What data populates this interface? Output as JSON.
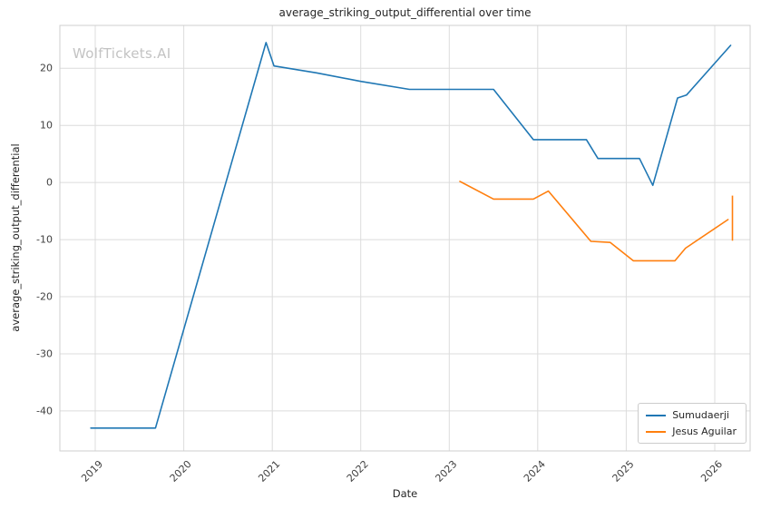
{
  "watermark": "WolfTickets.AI",
  "chart_data": {
    "type": "line",
    "title": "average_striking_output_differential over time",
    "xlabel": "Date",
    "ylabel": "average_striking_output_differential",
    "xlim": [
      2018.6,
      2026.4
    ],
    "ylim": [
      -47,
      27.5
    ],
    "xticks": [
      2019,
      2020,
      2021,
      2022,
      2023,
      2024,
      2025,
      2026
    ],
    "xtick_labels": [
      "2019",
      "2020",
      "2021",
      "2022",
      "2023",
      "2024",
      "2025",
      "2026"
    ],
    "yticks": [
      -40,
      -30,
      -20,
      -10,
      0,
      10,
      20
    ],
    "grid": true,
    "legend_position": "lower right",
    "series": [
      {
        "name": "Sumudaerji",
        "color": "#1f77b4",
        "points": [
          [
            2018.95,
            -43.0
          ],
          [
            2019.68,
            -43.0
          ],
          [
            2020.93,
            24.5
          ],
          [
            2021.02,
            20.4
          ],
          [
            2021.5,
            19.2
          ],
          [
            2022.0,
            17.7
          ],
          [
            2022.55,
            16.3
          ],
          [
            2023.0,
            16.3
          ],
          [
            2023.5,
            16.3
          ],
          [
            2023.95,
            7.5
          ],
          [
            2024.55,
            7.5
          ],
          [
            2024.68,
            4.2
          ],
          [
            2025.15,
            4.2
          ],
          [
            2025.3,
            -0.5
          ],
          [
            2025.58,
            14.8
          ],
          [
            2025.68,
            15.3
          ],
          [
            2026.18,
            24.0
          ]
        ]
      },
      {
        "name": "Jesus Aguilar",
        "color": "#ff7f0e",
        "points": [
          [
            2023.12,
            0.2
          ],
          [
            2023.5,
            -2.9
          ],
          [
            2023.95,
            -2.9
          ],
          [
            2024.12,
            -1.5
          ],
          [
            2024.6,
            -10.3
          ],
          [
            2024.82,
            -10.5
          ],
          [
            2025.08,
            -13.7
          ],
          [
            2025.55,
            -13.7
          ],
          [
            2025.67,
            -11.5
          ],
          [
            2026.15,
            -6.5
          ]
        ],
        "errorbar_last": {
          "x": 2026.2,
          "y_low": -10.2,
          "y_high": -2.3
        }
      }
    ]
  }
}
